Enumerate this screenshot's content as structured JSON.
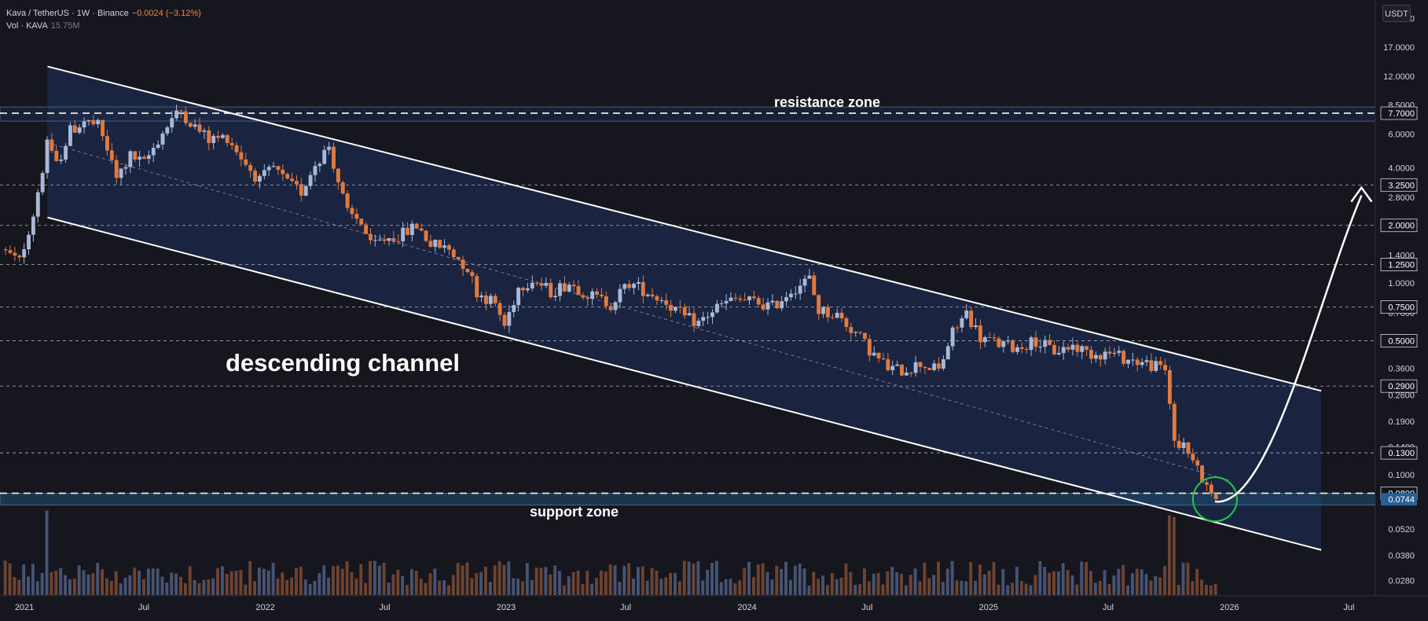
{
  "header": {
    "symbol": "Kava / TetherUS · 1W · Binance",
    "change": "−0.0024 (−3.12%)",
    "vol_label": "Vol · KAVA",
    "vol_value": "15.75M"
  },
  "currency_button": "USDT",
  "annotations": {
    "resistance": "resistance zone",
    "support": "support zone",
    "channel": "descending channel"
  },
  "colors": {
    "background": "#16161f",
    "up": "#aab8d8",
    "down": "#e07a3e",
    "channel_fill": "#1b2a4e",
    "zone_band": "#214a6a",
    "circle": "#22c84a",
    "last_price_bg": "#2a5e96"
  },
  "chart_data": {
    "type": "candlestick",
    "scale": "log",
    "ylim": [
      0.024,
      30
    ],
    "x_range": [
      "2020-11-25",
      "2026-08-10"
    ],
    "y_ticks": [
      24.0,
      17.0,
      12.0,
      8.5,
      6.0,
      4.0,
      2.8,
      2.0,
      1.4,
      1.0,
      0.7,
      0.5,
      0.36,
      0.26,
      0.19,
      0.14,
      0.1,
      0.052,
      0.038,
      0.028
    ],
    "y_tick_labels": [
      "24.0000",
      "17.0000",
      "12.0000",
      "8.5000",
      "6.0000",
      "4.0000",
      "2.8000",
      "2.0000",
      "1.4000",
      "1.0000",
      "0.7000",
      "0.5000",
      "0.3600",
      "0.2600",
      "0.1900",
      "0.1400",
      "0.1000",
      "0.0520",
      "0.0380",
      "0.0280"
    ],
    "x_ticks": [
      {
        "date": "2021-01-01",
        "label": "2021"
      },
      {
        "date": "2021-07-01",
        "label": "Jul"
      },
      {
        "date": "2022-01-01",
        "label": "2022"
      },
      {
        "date": "2022-07-01",
        "label": "Jul"
      },
      {
        "date": "2023-01-01",
        "label": "2023"
      },
      {
        "date": "2023-07-01",
        "label": "Jul"
      },
      {
        "date": "2024-01-01",
        "label": "2024"
      },
      {
        "date": "2024-07-01",
        "label": "Jul"
      },
      {
        "date": "2025-01-01",
        "label": "2025"
      },
      {
        "date": "2025-07-01",
        "label": "Jul"
      },
      {
        "date": "2026-01-01",
        "label": "2026"
      },
      {
        "date": "2026-07-01",
        "label": "Jul"
      }
    ],
    "horizontal_levels": [
      {
        "value": 7.7,
        "label": "7.7000"
      },
      {
        "value": 3.25,
        "label": "3.2500"
      },
      {
        "value": 2.0,
        "label": "2.0000"
      },
      {
        "value": 1.25,
        "label": "1.2500"
      },
      {
        "value": 0.75,
        "label": "0.7500"
      },
      {
        "value": 0.5,
        "label": "0.5000"
      },
      {
        "value": 0.29,
        "label": "0.2900"
      },
      {
        "value": 0.13,
        "label": "0.1300"
      },
      {
        "value": 0.08,
        "label": "0.0800"
      }
    ],
    "last_price": {
      "value": 0.0744,
      "label": "0.0744"
    },
    "resistance_zone": [
      7.0,
      8.3
    ],
    "support_zone": [
      0.0695,
      0.08
    ],
    "channel": {
      "upper": [
        [
          "2021-02-05",
          13.5
        ],
        [
          "2026-05-20",
          0.274
        ]
      ],
      "lower": [
        [
          "2021-02-05",
          2.2
        ],
        [
          "2026-05-20",
          0.0405
        ]
      ],
      "mid": [
        [
          "2021-02-05",
          5.4
        ],
        [
          "2026-05-20",
          0.105
        ]
      ]
    },
    "projection_arrow": {
      "from": [
        "2025-12-10",
        0.0725
      ],
      "to": [
        "2026-07-20",
        3.15
      ]
    },
    "highlight_circle": {
      "center": [
        "2025-12-10",
        0.0745
      ]
    },
    "price_path": [
      [
        "2020-11-30",
        1.5
      ],
      [
        "2020-12-28",
        1.3
      ],
      [
        "2021-01-18",
        2.3
      ],
      [
        "2021-02-08",
        5.2
      ],
      [
        "2021-02-22",
        4.1
      ],
      [
        "2021-03-15",
        6.2
      ],
      [
        "2021-04-05",
        7.0
      ],
      [
        "2021-04-26",
        6.6
      ],
      [
        "2021-05-10",
        5.0
      ],
      [
        "2021-05-24",
        3.5
      ],
      [
        "2021-06-14",
        4.6
      ],
      [
        "2021-07-05",
        4.2
      ],
      [
        "2021-07-26",
        5.6
      ],
      [
        "2021-08-16",
        7.2
      ],
      [
        "2021-08-30",
        7.9
      ],
      [
        "2021-09-20",
        6.5
      ],
      [
        "2021-10-11",
        5.6
      ],
      [
        "2021-11-08",
        5.8
      ],
      [
        "2021-12-06",
        4.2
      ],
      [
        "2021-12-27",
        3.4
      ],
      [
        "2022-01-17",
        4.0
      ],
      [
        "2022-02-07",
        3.3
      ],
      [
        "2022-02-28",
        3.0
      ],
      [
        "2022-03-21",
        4.2
      ],
      [
        "2022-04-11",
        5.2
      ],
      [
        "2022-04-25",
        3.4
      ],
      [
        "2022-05-09",
        2.3
      ],
      [
        "2022-05-30",
        2.1
      ],
      [
        "2022-06-13",
        1.55
      ],
      [
        "2022-07-04",
        1.7
      ],
      [
        "2022-08-01",
        1.8
      ],
      [
        "2022-08-22",
        2.0
      ],
      [
        "2022-09-12",
        1.6
      ],
      [
        "2022-10-10",
        1.5
      ],
      [
        "2022-11-07",
        1.2
      ],
      [
        "2022-11-21",
        0.9
      ],
      [
        "2022-12-19",
        0.78
      ],
      [
        "2023-01-02",
        0.6
      ],
      [
        "2023-01-23",
        0.95
      ],
      [
        "2023-02-13",
        1.05
      ],
      [
        "2023-03-13",
        0.9
      ],
      [
        "2023-04-10",
        1.0
      ],
      [
        "2023-05-15",
        0.85
      ],
      [
        "2023-06-12",
        0.78
      ],
      [
        "2023-07-10",
        1.0
      ],
      [
        "2023-08-07",
        0.9
      ],
      [
        "2023-09-04",
        0.8
      ],
      [
        "2023-10-02",
        0.66
      ],
      [
        "2023-10-23",
        0.62
      ],
      [
        "2023-11-20",
        0.75
      ],
      [
        "2023-12-18",
        0.82
      ],
      [
        "2024-01-15",
        0.8
      ],
      [
        "2024-02-12",
        0.75
      ],
      [
        "2024-03-11",
        0.92
      ],
      [
        "2024-04-08",
        1.05
      ],
      [
        "2024-04-22",
        0.72
      ],
      [
        "2024-05-20",
        0.68
      ],
      [
        "2024-06-17",
        0.55
      ],
      [
        "2024-07-15",
        0.42
      ],
      [
        "2024-08-05",
        0.36
      ],
      [
        "2024-08-26",
        0.35
      ],
      [
        "2024-09-23",
        0.38
      ],
      [
        "2024-10-21",
        0.35
      ],
      [
        "2024-11-11",
        0.55
      ],
      [
        "2024-12-02",
        0.7
      ],
      [
        "2024-12-23",
        0.52
      ],
      [
        "2025-01-20",
        0.48
      ],
      [
        "2025-02-17",
        0.46
      ],
      [
        "2025-03-17",
        0.5
      ],
      [
        "2025-04-14",
        0.44
      ],
      [
        "2025-05-12",
        0.47
      ],
      [
        "2025-06-09",
        0.43
      ],
      [
        "2025-07-07",
        0.43
      ],
      [
        "2025-08-04",
        0.4
      ],
      [
        "2025-09-01",
        0.38
      ],
      [
        "2025-09-29",
        0.35
      ],
      [
        "2025-10-13",
        0.16
      ],
      [
        "2025-11-03",
        0.13
      ],
      [
        "2025-11-24",
        0.095
      ],
      [
        "2025-12-08",
        0.0744
      ]
    ]
  }
}
